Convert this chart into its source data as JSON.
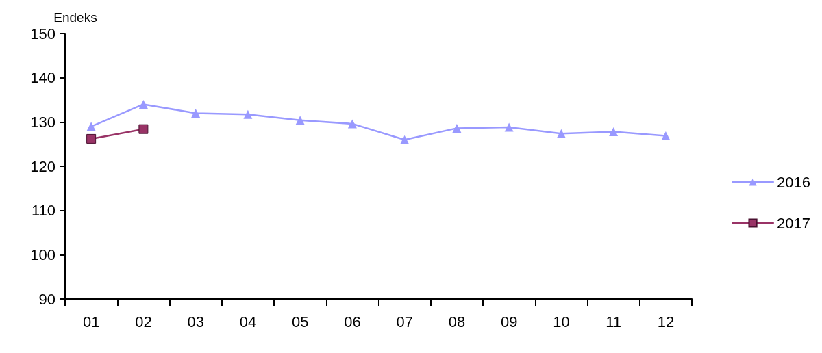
{
  "chart_data": {
    "type": "line",
    "ylabel": "Endeks",
    "categories": [
      "01",
      "02",
      "03",
      "04",
      "05",
      "06",
      "07",
      "08",
      "09",
      "10",
      "11",
      "12"
    ],
    "series": [
      {
        "name": "2016",
        "color": "#9999ff",
        "marker": "triangle",
        "values": [
          129.0,
          134.0,
          132.0,
          131.7,
          130.4,
          129.6,
          126.0,
          128.6,
          128.8,
          127.4,
          127.8,
          126.9
        ]
      },
      {
        "name": "2017",
        "color": "#993366",
        "marker": "square",
        "values": [
          126.2,
          128.4,
          null,
          null,
          null,
          null,
          null,
          null,
          null,
          null,
          null,
          null
        ]
      }
    ],
    "ylim": [
      90,
      150
    ],
    "yticks": [
      90,
      100,
      110,
      120,
      130,
      140,
      150
    ],
    "grid": false,
    "legend": "right",
    "line_style": "solid"
  }
}
